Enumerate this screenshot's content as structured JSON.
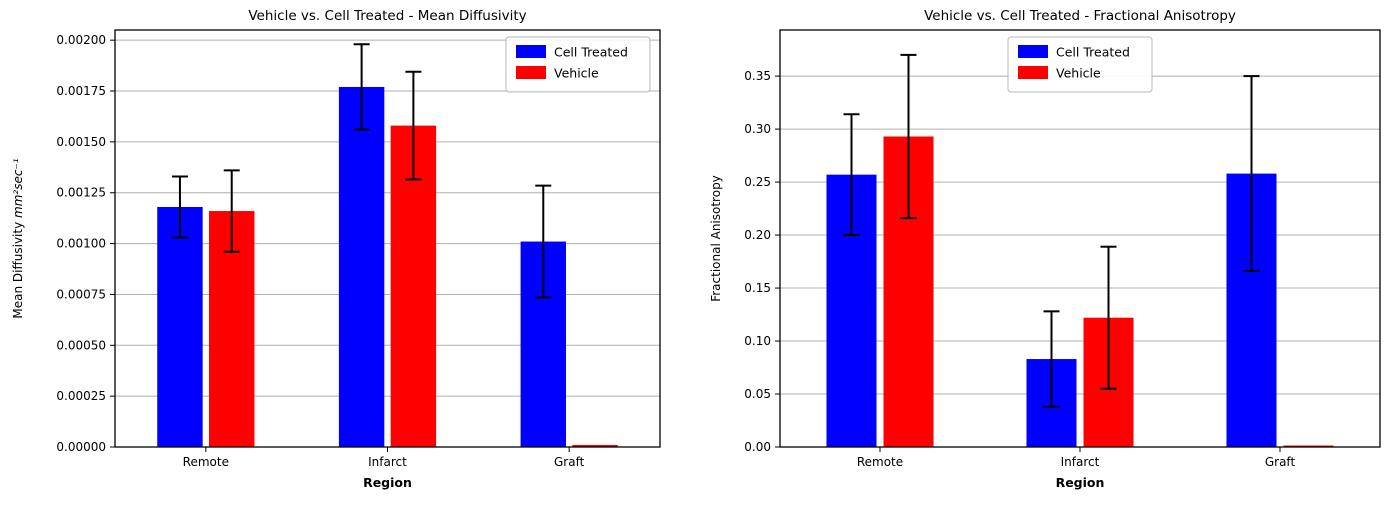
{
  "page": {
    "background": "#ffffff"
  },
  "chart_data": [
    {
      "type": "bar",
      "title": "Vehicle vs. Cell Treated - Mean Diffusivity",
      "xlabel": "Region",
      "ylabel": "Mean Diffusivity mm²sec⁻¹",
      "ylabel_segments": [
        {
          "text": "Mean Diffusivity ",
          "italic": false
        },
        {
          "text": "mm²sec⁻¹",
          "italic": true
        }
      ],
      "categories": [
        "Remote",
        "Infarct",
        "Graft"
      ],
      "series": [
        {
          "name": "Cell Treated",
          "color": "#0000ff",
          "values": [
            0.00118,
            0.00177,
            0.00101
          ],
          "errors": [
            0.00015,
            0.00021,
            0.000275
          ]
        },
        {
          "name": "Vehicle",
          "color": "#ff0000",
          "values": [
            0.00116,
            0.00158,
            1e-05
          ],
          "errors": [
            0.0002,
            0.000265,
            null
          ]
        }
      ],
      "ylim": [
        0,
        0.00205
      ],
      "yticks": [
        0,
        0.00025,
        0.0005,
        0.00075,
        0.001,
        0.00125,
        0.0015,
        0.00175,
        0.002
      ],
      "ytick_labels": [
        "0.00000",
        "0.00025",
        "0.00050",
        "0.00075",
        "0.00100",
        "0.00125",
        "0.00150",
        "0.00175",
        "0.00200"
      ],
      "grid": true,
      "grid_color": "#b0b0b0",
      "errorbar_color": "#000000",
      "legend": {
        "position": "upper right",
        "entries": [
          "Cell Treated",
          "Vehicle"
        ]
      }
    },
    {
      "type": "bar",
      "title": "Vehicle vs. Cell Treated - Fractional Anisotropy",
      "xlabel": "Region",
      "ylabel": "Fractional Anisotropy",
      "categories": [
        "Remote",
        "Infarct",
        "Graft"
      ],
      "series": [
        {
          "name": "Cell Treated",
          "color": "#0000ff",
          "values": [
            0.257,
            0.083,
            0.258
          ],
          "errors": [
            0.057,
            0.045,
            0.092
          ]
        },
        {
          "name": "Vehicle",
          "color": "#ff0000",
          "values": [
            0.293,
            0.122,
            0.001
          ],
          "errors": [
            0.077,
            0.067,
            null
          ]
        }
      ],
      "ylim": [
        0,
        0.3935
      ],
      "yticks": [
        0,
        0.05,
        0.1,
        0.15,
        0.2,
        0.25,
        0.3,
        0.35
      ],
      "ytick_labels": [
        "0.00",
        "0.05",
        "0.10",
        "0.15",
        "0.20",
        "0.25",
        "0.30",
        "0.35"
      ],
      "grid": true,
      "grid_color": "#b0b0b0",
      "errorbar_color": "#000000",
      "legend": {
        "position": "upper center",
        "entries": [
          "Cell Treated",
          "Vehicle"
        ]
      }
    }
  ]
}
